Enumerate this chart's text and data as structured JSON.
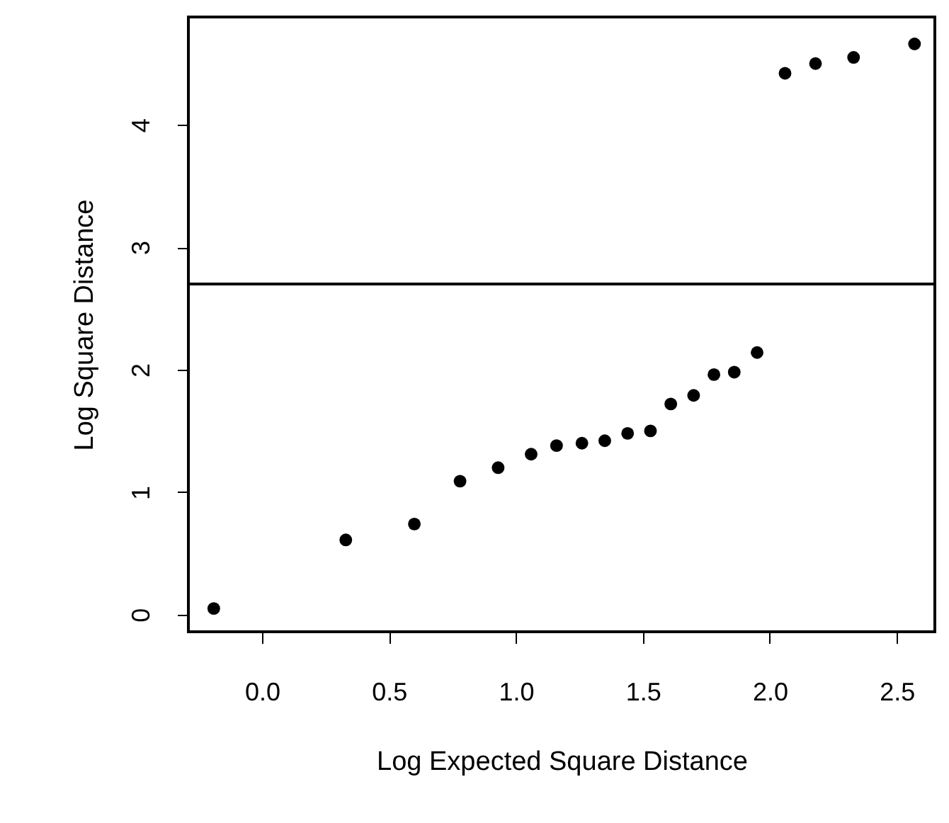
{
  "chart_data": {
    "type": "scatter",
    "xlabel": "Log Expected Square Distance",
    "ylabel": "Log Square Distance",
    "x": [
      -0.19,
      0.33,
      0.6,
      0.78,
      0.93,
      1.06,
      1.16,
      1.26,
      1.35,
      1.44,
      1.53,
      1.61,
      1.7,
      1.78,
      1.86,
      1.95,
      2.06,
      2.18,
      2.33,
      2.57
    ],
    "series": [
      {
        "color": "#000000",
        "values": [
          0.05,
          0.61,
          0.74,
          1.09,
          1.2,
          1.31,
          1.38,
          1.4,
          1.42,
          1.48,
          1.5,
          1.72,
          1.79,
          1.96,
          1.98,
          2.14,
          4.42,
          4.5,
          4.55,
          4.66
        ]
      }
    ],
    "xlim": [
      -0.29,
      2.65
    ],
    "ylim": [
      -0.14,
      4.88
    ],
    "xticks": [
      {
        "value": 0,
        "label": "0.0"
      },
      0.5,
      {
        "value": 1,
        "label": "1.0"
      },
      1.5,
      {
        "value": 2,
        "label": "2.0"
      },
      2.5
    ],
    "yticks": [
      0,
      1,
      2,
      3,
      4
    ],
    "ref_lines": [
      {
        "axis": "y",
        "value": 2.7,
        "color": "#000000"
      }
    ],
    "marker": "circle",
    "grid": false
  }
}
